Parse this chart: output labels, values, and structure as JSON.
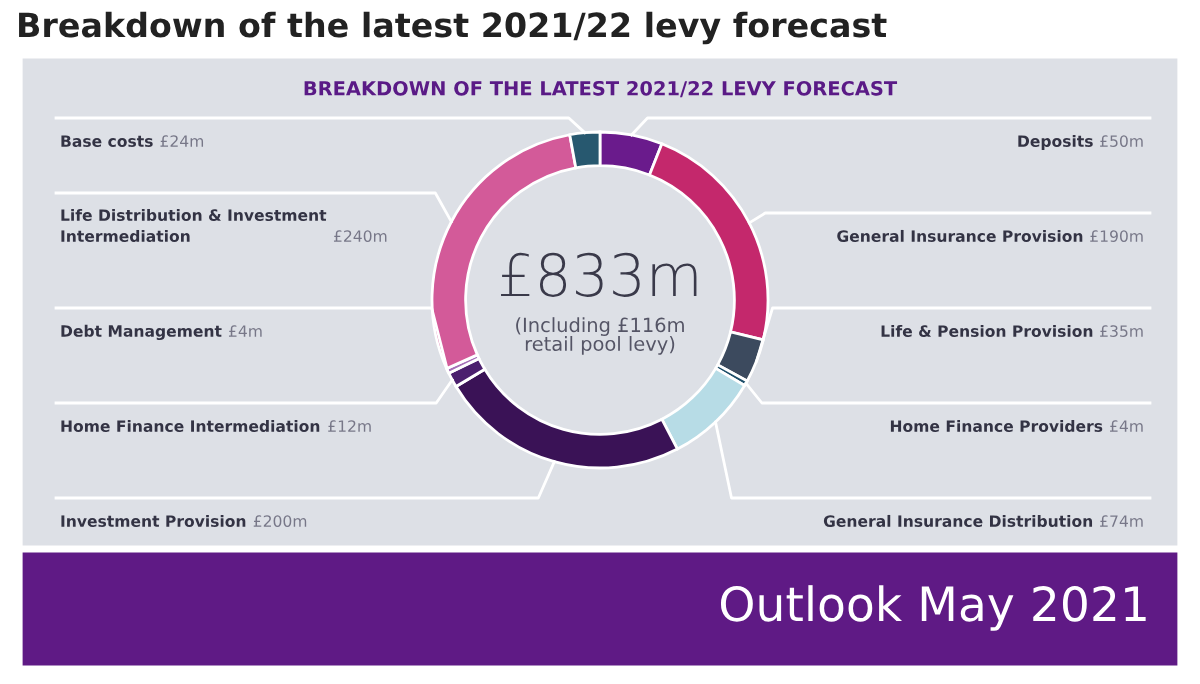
{
  "chart_data": {
    "type": "donut",
    "title": "Breakdown of the latest 2021/22 levy forecast",
    "subtitle": "BREAKDOWN OF THE LATEST 2021/22 LEVY FORECAST",
    "categories": [
      "Deposits",
      "General Insurance Provision",
      "Life & Pension Provision",
      "Home Finance Providers",
      "General Insurance Distribution",
      "Investment Provision",
      "Home Finance Intermediation",
      "Debt Management",
      "Life Distribution & Investment\nIntermediation",
      "Base costs"
    ],
    "values": [
      50,
      190,
      35,
      4,
      74,
      200,
      12,
      4,
      240,
      24
    ],
    "value_labels": [
      "£50m",
      "£190m",
      "£35m",
      "£4m",
      "£74m",
      "£200m",
      "£12m",
      "£4m",
      "£240m",
      "£24m"
    ],
    "colors": [
      "#6a1b8c",
      "#c4286c",
      "#3c4a5e",
      "#1e4f6a",
      "#b7dce6",
      "#3a1256",
      "#4b1f6e",
      "#a56fb8",
      "#d35a99",
      "#27586f"
    ],
    "annotations": [
      "£833m",
      "(Including £116m\nretail pool levy)",
      "Outlook May 2021"
    ]
  }
}
